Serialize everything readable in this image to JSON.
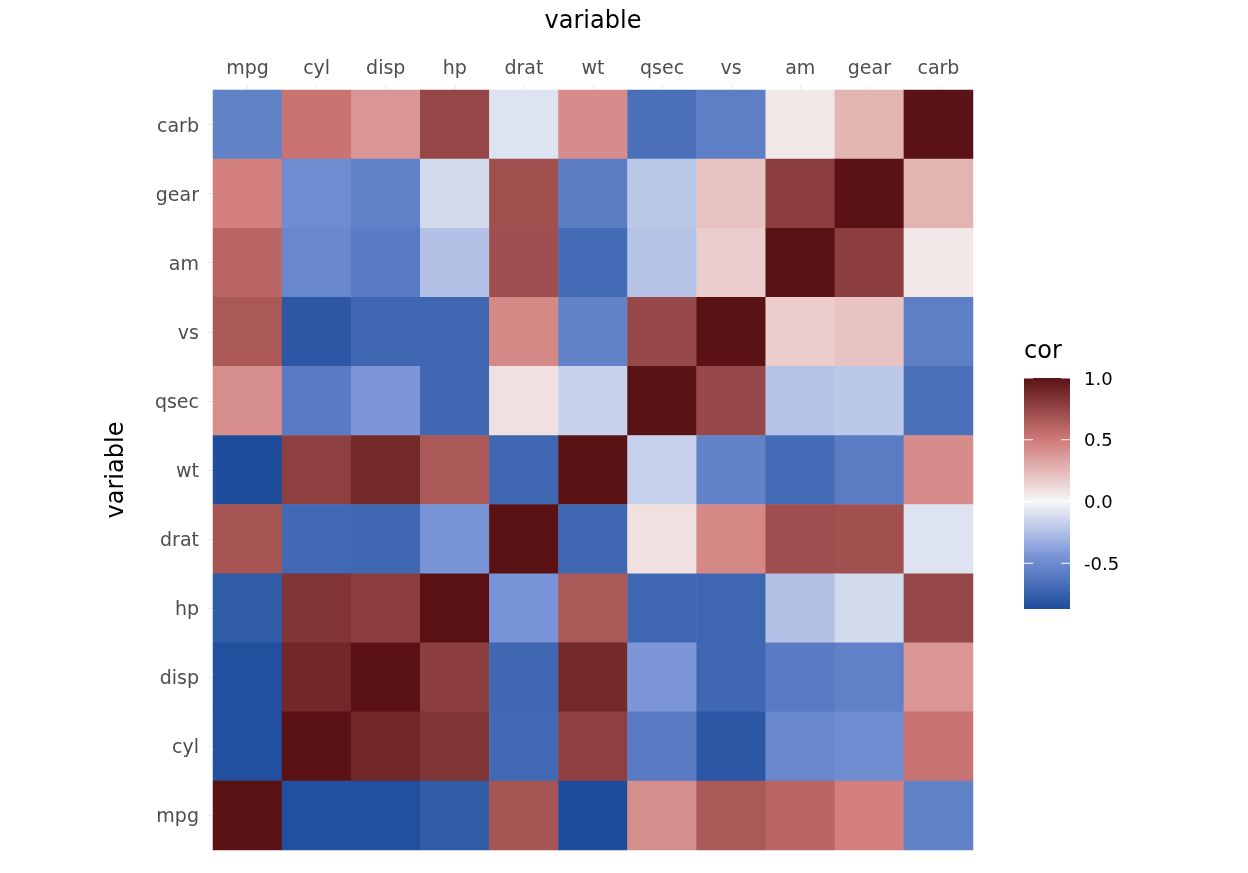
{
  "chart_data": {
    "type": "heatmap",
    "xlabel": "variable",
    "ylabel": "variable",
    "clabel": "cor",
    "categories": [
      "mpg",
      "cyl",
      "disp",
      "hp",
      "drat",
      "wt",
      "qsec",
      "vs",
      "am",
      "gear",
      "carb"
    ],
    "y_categories": [
      "carb",
      "gear",
      "am",
      "vs",
      "qsec",
      "wt",
      "drat",
      "hp",
      "disp",
      "cyl",
      "mpg"
    ],
    "cells": [
      [
        -0.55,
        0.53,
        0.39,
        0.75,
        -0.09,
        0.43,
        -0.66,
        -0.57,
        0.06,
        0.27,
        1
      ],
      [
        0.48,
        -0.49,
        -0.56,
        -0.13,
        0.7,
        -0.58,
        -0.21,
        0.21,
        0.79,
        1,
        0.27
      ],
      [
        0.6,
        -0.52,
        -0.59,
        -0.24,
        0.71,
        -0.69,
        -0.23,
        0.17,
        1,
        0.79,
        0.06
      ],
      [
        0.66,
        -0.81,
        -0.71,
        -0.72,
        0.44,
        -0.55,
        0.74,
        1,
        0.17,
        0.21,
        -0.57
      ],
      [
        0.42,
        -0.59,
        -0.43,
        -0.71,
        0.09,
        -0.17,
        1,
        0.74,
        -0.23,
        -0.21,
        -0.66
      ],
      [
        -0.87,
        0.78,
        0.89,
        0.66,
        -0.71,
        1,
        -0.17,
        -0.55,
        -0.69,
        -0.58,
        0.43
      ],
      [
        0.68,
        -0.7,
        -0.71,
        -0.45,
        1,
        -0.71,
        0.09,
        0.44,
        0.71,
        0.7,
        -0.09
      ],
      [
        -0.78,
        0.83,
        0.79,
        1,
        -0.45,
        0.66,
        -0.71,
        -0.72,
        -0.24,
        -0.13,
        0.75
      ],
      [
        -0.85,
        0.9,
        1,
        0.79,
        -0.71,
        0.89,
        -0.43,
        -0.71,
        -0.59,
        -0.56,
        0.39
      ],
      [
        -0.85,
        1,
        0.9,
        0.83,
        -0.7,
        0.78,
        -0.59,
        -0.81,
        -0.52,
        -0.49,
        0.53
      ],
      [
        1,
        -0.85,
        -0.85,
        -0.78,
        0.68,
        -0.87,
        0.42,
        0.66,
        0.6,
        0.48,
        -0.55
      ]
    ],
    "clim": [
      -0.87,
      1
    ],
    "cticks": [
      {
        "value": -0.5,
        "label": "-0.5"
      },
      {
        "value": 0,
        "label": "0.0"
      },
      {
        "value": 0.5,
        "label": "0.5"
      },
      {
        "value": 1,
        "label": "1.0"
      }
    ]
  }
}
